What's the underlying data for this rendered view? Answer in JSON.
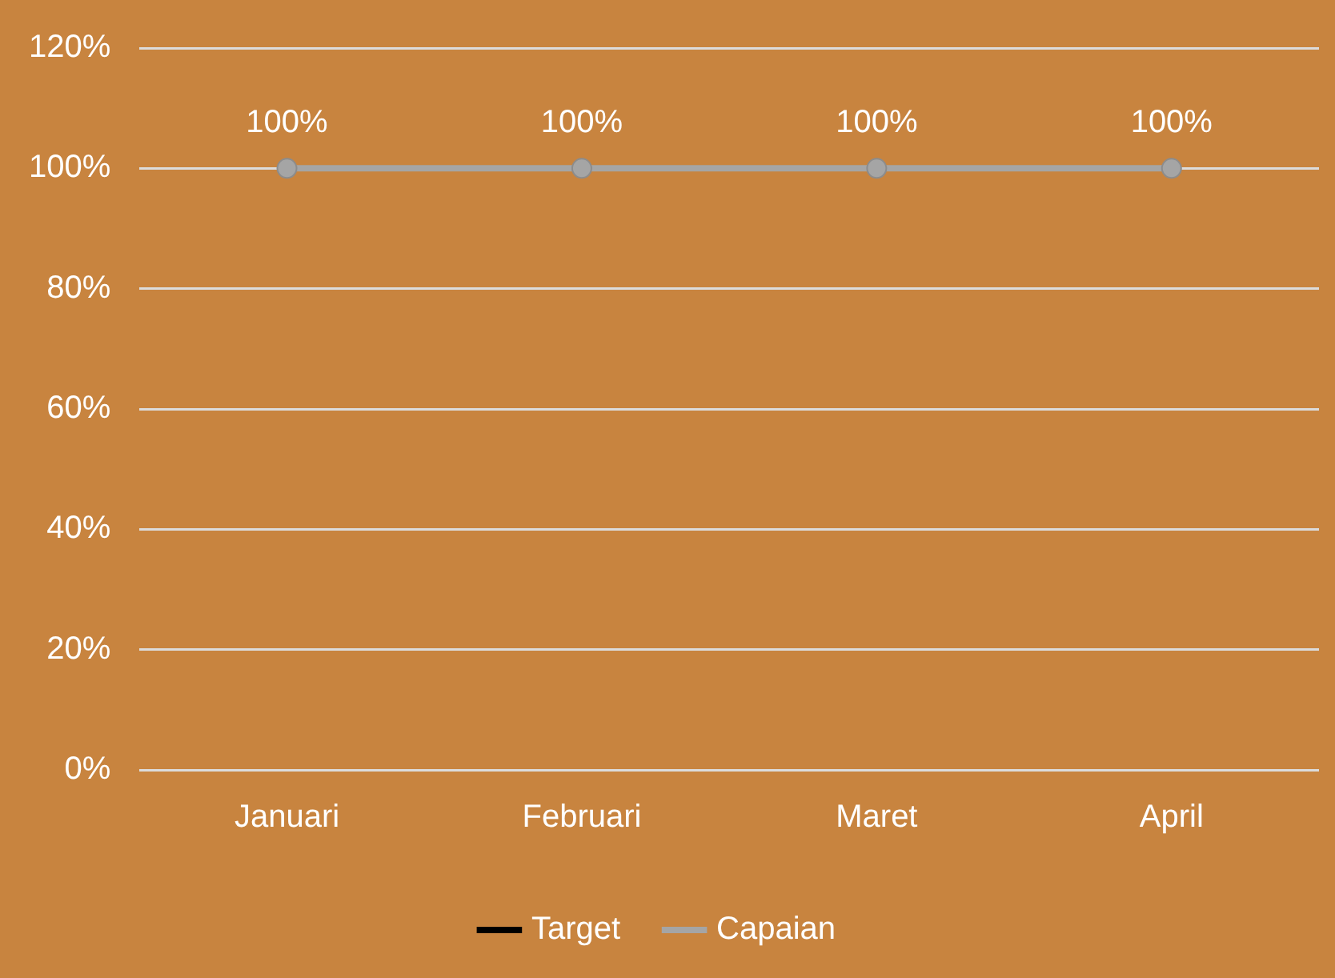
{
  "chart_data": {
    "type": "line",
    "categories": [
      "Januari",
      "Februari",
      "Maret",
      "April"
    ],
    "series": [
      {
        "name": "Target",
        "color": "#000000",
        "values": [
          null,
          null,
          null,
          null
        ]
      },
      {
        "name": "Capaian",
        "color": "#a5a5a5",
        "values": [
          100,
          100,
          100,
          100
        ],
        "value_labels": [
          "100%",
          "100%",
          "100%",
          "100%"
        ]
      }
    ],
    "ylim": [
      0,
      120
    ],
    "yticks": [
      {
        "value": 0,
        "label": "0%"
      },
      {
        "value": 20,
        "label": "20%"
      },
      {
        "value": 40,
        "label": "40%"
      },
      {
        "value": 60,
        "label": "60%"
      },
      {
        "value": 80,
        "label": "80%"
      },
      {
        "value": 100,
        "label": "100%"
      },
      {
        "value": 120,
        "label": "120%"
      }
    ],
    "grid": "y",
    "legend": "bottom",
    "marker": "circle",
    "line_style": "solid"
  }
}
